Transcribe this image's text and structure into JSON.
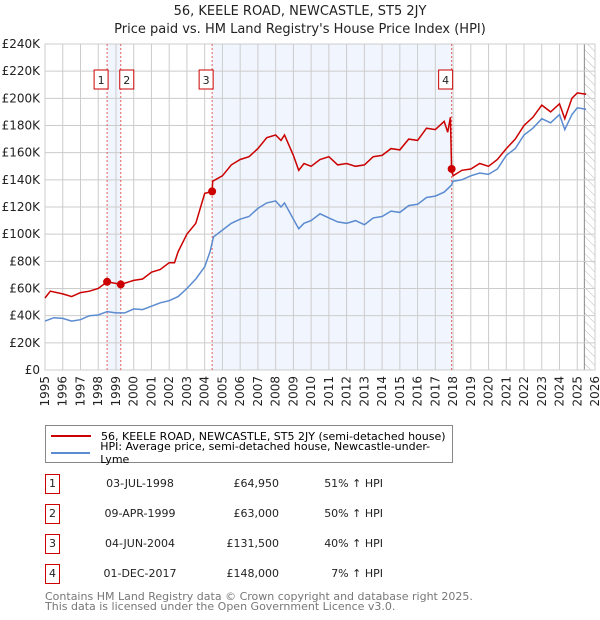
{
  "chart_data": {
    "type": "line",
    "title": "56, KEELE ROAD, NEWCASTLE, ST5 2JY",
    "subtitle": "Price paid vs. HM Land Registry's House Price Index (HPI)",
    "xlim": [
      1995,
      2026
    ],
    "ylim": [
      0,
      240000
    ],
    "y_ticks": [
      0,
      20000,
      40000,
      60000,
      80000,
      100000,
      120000,
      140000,
      160000,
      180000,
      200000,
      220000,
      240000
    ],
    "y_tick_labels": [
      "£0",
      "£20K",
      "£40K",
      "£60K",
      "£80K",
      "£100K",
      "£120K",
      "£140K",
      "£160K",
      "£180K",
      "£200K",
      "£220K",
      "£240K"
    ],
    "x_ticks": [
      "1995",
      "1996",
      "1997",
      "1998",
      "1999",
      "2000",
      "2001",
      "2002",
      "2003",
      "2004",
      "2005",
      "2006",
      "2007",
      "2008",
      "2009",
      "2010",
      "2011",
      "2012",
      "2013",
      "2014",
      "2015",
      "2016",
      "2017",
      "2018",
      "2019",
      "2020",
      "2021",
      "2022",
      "2023",
      "2024",
      "2025",
      "2026"
    ],
    "grid": true,
    "forecast_hatch_from": 2025.4,
    "series": [
      {
        "name": "56, KEELE ROAD, NEWCASTLE, ST5 2JY (semi-detached house)",
        "color": "#cc0000",
        "x": [
          1995,
          1995.3,
          1996,
          1996.5,
          1997,
          1997.5,
          1998,
          1998.5,
          1999.27,
          2000,
          2000.5,
          2001,
          2001.5,
          2002,
          2002.3,
          2002.5,
          2003,
          2003.5,
          2004,
          2004.42,
          2004.45,
          2005,
          2005.5,
          2006,
          2006.5,
          2007,
          2007.5,
          2008,
          2008.3,
          2008.5,
          2009,
          2009.3,
          2009.6,
          2010,
          2010.5,
          2011,
          2011.5,
          2012,
          2012.5,
          2013,
          2013.5,
          2014,
          2014.5,
          2015,
          2015.5,
          2016,
          2016.5,
          2017,
          2017.5,
          2017.7,
          2017.85,
          2017.92,
          2018,
          2018.5,
          2019,
          2019.5,
          2020,
          2020.5,
          2021,
          2021.5,
          2022,
          2022.5,
          2023,
          2023.5,
          2024,
          2024.3,
          2024.7,
          2025,
          2025.5
        ],
        "y": [
          53,
          58,
          56,
          54,
          57,
          58,
          60,
          64.95,
          63,
          66,
          67,
          72,
          74,
          79,
          79,
          87,
          100,
          108,
          130,
          131.5,
          139,
          143,
          151,
          155,
          157,
          163,
          171,
          173,
          169,
          173,
          158,
          147,
          152,
          150,
          155,
          157,
          151,
          152,
          150,
          151,
          157,
          158,
          163,
          162,
          170,
          169,
          178,
          177,
          183,
          175,
          186,
          148,
          143,
          147,
          148,
          152,
          150,
          155,
          163,
          170,
          180,
          186,
          195,
          190,
          196,
          185,
          200,
          204,
          203
        ],
        "y_unit": "£K"
      },
      {
        "name": "HPI: Average price, semi-detached house, Newcastle-under-Lyme",
        "color": "#5b8bd0",
        "x": [
          1995,
          1995.5,
          1996,
          1996.5,
          1997,
          1997.5,
          1998,
          1998.5,
          1999,
          1999.5,
          2000,
          2000.5,
          2001,
          2001.5,
          2002,
          2002.5,
          2003,
          2003.5,
          2004,
          2004.3,
          2004.5,
          2005,
          2005.5,
          2006,
          2006.5,
          2007,
          2007.5,
          2008,
          2008.3,
          2008.5,
          2009,
          2009.3,
          2009.6,
          2010,
          2010.5,
          2011,
          2011.5,
          2012,
          2012.5,
          2013,
          2013.5,
          2014,
          2014.5,
          2015,
          2015.5,
          2016,
          2016.5,
          2017,
          2017.5,
          2017.9,
          2018,
          2018.5,
          2019,
          2019.5,
          2020,
          2020.5,
          2021,
          2021.5,
          2022,
          2022.5,
          2023,
          2023.5,
          2024,
          2024.3,
          2024.7,
          2025,
          2025.5
        ],
        "y": [
          36,
          38.5,
          38,
          36,
          37,
          40,
          40.5,
          43,
          42,
          42,
          45,
          44.5,
          47,
          49.5,
          51,
          54,
          60,
          67,
          76,
          87,
          98,
          103,
          108,
          111,
          113,
          119,
          123,
          124.5,
          120,
          123,
          111,
          104,
          108,
          110,
          115,
          112,
          109,
          108,
          110,
          107,
          112,
          113,
          117,
          116,
          121,
          122,
          127,
          128,
          131,
          136,
          139,
          140,
          143,
          145,
          144,
          148,
          158,
          163,
          173,
          178,
          185,
          182,
          188,
          177,
          188,
          193,
          192
        ],
        "y_unit": "£K"
      }
    ],
    "sales": [
      {
        "label": "1",
        "x": 1998.5,
        "date": "03-JUL-1998",
        "price": "£64,950",
        "value": 64.95,
        "hpi": "51% ↑ HPI"
      },
      {
        "label": "2",
        "x": 1999.27,
        "date": "09-APR-1999",
        "price": "£63,000",
        "value": 63,
        "hpi": "50% ↑ HPI"
      },
      {
        "label": "3",
        "x": 2004.42,
        "date": "04-JUN-2004",
        "price": "£131,500",
        "value": 131.5,
        "hpi": "40% ↑ HPI"
      },
      {
        "label": "4",
        "x": 2017.92,
        "date": "01-DEC-2017",
        "price": "£148,000",
        "value": 148,
        "hpi": "7% ↑ HPI"
      }
    ],
    "shaded_ranges": [
      [
        1998.5,
        1999.27
      ],
      [
        2004.42,
        2017.92
      ]
    ]
  },
  "legend": {
    "property": "56, KEELE ROAD, NEWCASTLE, ST5 2JY (semi-detached house)",
    "hpi": "HPI: Average price, semi-detached house, Newcastle-under-Lyme"
  },
  "footer": {
    "line1": "Contains HM Land Registry data © Crown copyright and database right 2025.",
    "line2": "This data is licensed under the Open Government Licence v3.0."
  }
}
